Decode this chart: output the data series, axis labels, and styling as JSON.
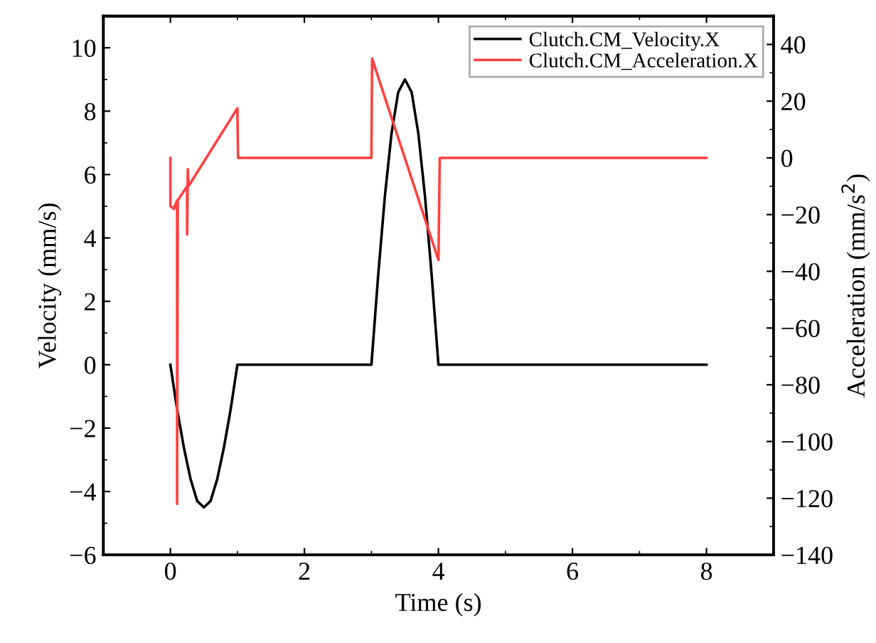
{
  "chart_data": {
    "type": "line",
    "xlabel": "Time (s)",
    "ylabel": "Velocity (mm/s)",
    "y2label": "Acceleration (mm/s$^{2}$)",
    "xlim": [
      -1,
      9
    ],
    "xticks": [
      0,
      2,
      4,
      6,
      8
    ],
    "ylim": [
      -6,
      11
    ],
    "yticks": [
      -6,
      -4,
      -2,
      0,
      2,
      4,
      6,
      8,
      10
    ],
    "y2lim": [
      -140,
      50
    ],
    "y2ticks": [
      -140,
      -120,
      -100,
      -80,
      -60,
      -40,
      -20,
      0,
      20,
      40
    ],
    "legend": "top right",
    "grid": false,
    "marker": "none",
    "line_style": "solid",
    "series": [
      {
        "name": "Clutch.CM_Velocity.X",
        "color": "#000000",
        "x": [
          0,
          0.1,
          0.2,
          0.3,
          0.4,
          0.5,
          0.6,
          0.7,
          0.8,
          0.9,
          1,
          3,
          3.1,
          3.2,
          3.3,
          3.4,
          3.5,
          3.6,
          3.7,
          3.8,
          3.9,
          4,
          8
        ],
        "values": [
          0,
          -1.4,
          -2.6,
          -3.6,
          -4.3,
          -4.5,
          -4.3,
          -3.6,
          -2.6,
          -1.4,
          0,
          0,
          2.8,
          5.3,
          7.3,
          8.6,
          9,
          8.6,
          7.3,
          5.3,
          2.8,
          0,
          0
        ]
      },
      {
        "name": "Clutch.CM_Acceleration.X",
        "color": "#ff4040",
        "axis": "y2",
        "x": [
          0,
          0,
          0.05,
          0.1,
          0.1,
          0.11,
          0.25,
          0.25,
          0.26,
          0.27,
          1,
          1.01,
          3,
          3.01,
          4,
          4.02,
          8
        ],
        "values": [
          0,
          -17,
          -18,
          -15,
          -122,
          -15,
          -10,
          -27,
          -4,
          -10,
          17.5,
          0,
          0,
          35,
          -36,
          0,
          0
        ]
      }
    ]
  }
}
